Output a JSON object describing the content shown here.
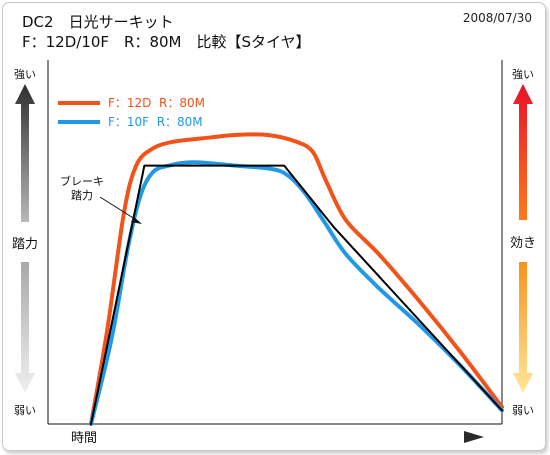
{
  "header": {
    "title": "DC2　日光サーキット",
    "subtitle": "F：12D/10F　R：80M　比較【Sタイヤ】",
    "date": "2008/07/30"
  },
  "left_scale": {
    "top": "強い",
    "middle": "踏力",
    "bottom": "弱い"
  },
  "right_scale": {
    "top": "強い",
    "middle": "効き",
    "bottom": "弱い"
  },
  "colors": {
    "red": "#f2531a",
    "blue": "#2399e6",
    "black": "#000000"
  },
  "chart_data": {
    "type": "line",
    "x_label": "時間",
    "y_label": "踏力",
    "annotation": {
      "text_lines": [
        "ブレーキ",
        "踏力"
      ]
    },
    "legend": {
      "position": "top-left"
    },
    "series": [
      {
        "name": "F：12D  R：80M",
        "color": "#f2531a",
        "points": [
          [
            0,
            0
          ],
          [
            4,
            28
          ],
          [
            8,
            62
          ],
          [
            11,
            76
          ],
          [
            15,
            81
          ],
          [
            20,
            83
          ],
          [
            27,
            84
          ],
          [
            35,
            85
          ],
          [
            43,
            85
          ],
          [
            50,
            83
          ],
          [
            54,
            80
          ],
          [
            57,
            72
          ],
          [
            62,
            60
          ],
          [
            70,
            50
          ],
          [
            80,
            36
          ],
          [
            90,
            21
          ],
          [
            100,
            5
          ]
        ]
      },
      {
        "name": "F：10F  R：80M",
        "color": "#2399e6",
        "points": [
          [
            0,
            0
          ],
          [
            5,
            25
          ],
          [
            9,
            52
          ],
          [
            12,
            67
          ],
          [
            15,
            74
          ],
          [
            19,
            76
          ],
          [
            25,
            77
          ],
          [
            35,
            76
          ],
          [
            44,
            75
          ],
          [
            48,
            73
          ],
          [
            52,
            68
          ],
          [
            57,
            59
          ],
          [
            62,
            50
          ],
          [
            70,
            40
          ],
          [
            80,
            29
          ],
          [
            90,
            17
          ],
          [
            100,
            4
          ]
        ]
      },
      {
        "name": "ブレーキ踏力",
        "color": "#000000",
        "points": [
          [
            0,
            0
          ],
          [
            13,
            76
          ],
          [
            47,
            76
          ],
          [
            59,
            58
          ],
          [
            100,
            4
          ]
        ]
      }
    ]
  }
}
